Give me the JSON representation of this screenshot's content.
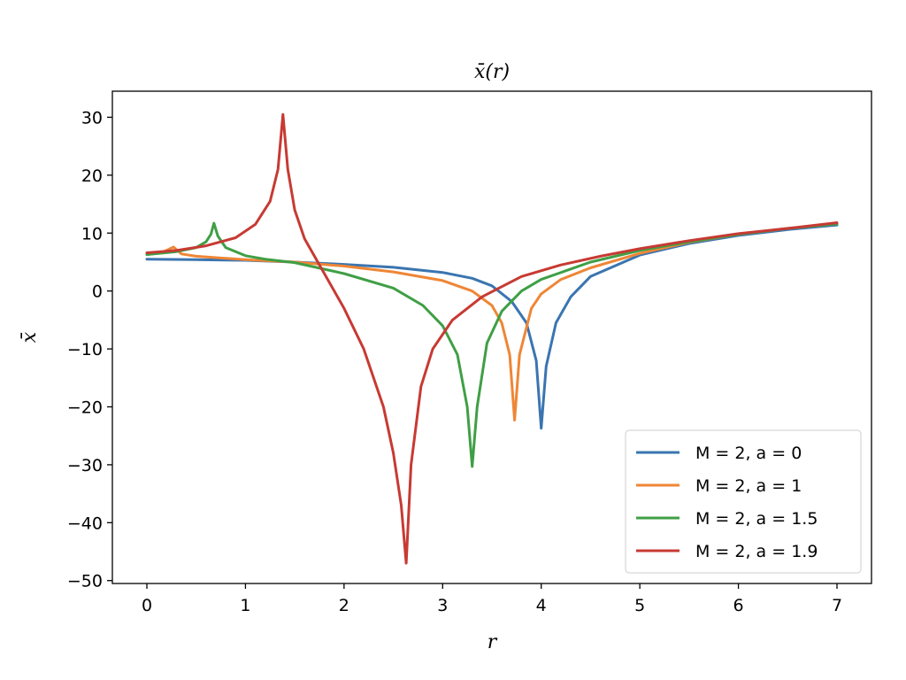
{
  "chart_data": {
    "type": "line",
    "title": "x̄(r)",
    "xlabel": "r",
    "ylabel": "x̄",
    "xlim": [
      -0.35,
      7.35
    ],
    "ylim": [
      -50.5,
      34.5
    ],
    "xticks": [
      0,
      1,
      2,
      3,
      4,
      5,
      6,
      7
    ],
    "xtick_labels": [
      "0",
      "1",
      "2",
      "3",
      "4",
      "5",
      "6",
      "7"
    ],
    "yticks": [
      -50,
      -40,
      -30,
      -20,
      -10,
      0,
      10,
      20,
      30
    ],
    "ytick_labels": [
      "−50",
      "−40",
      "−30",
      "−20",
      "−10",
      "0",
      "10",
      "20",
      "30"
    ],
    "grid": false,
    "legend_position": "bottom-right",
    "series": [
      {
        "name": "M = 2, a = 0",
        "color": "#3a75b0",
        "x": [
          0,
          0.5,
          1.0,
          1.5,
          2.0,
          2.5,
          3.0,
          3.3,
          3.5,
          3.7,
          3.85,
          3.95,
          4.0,
          4.05,
          4.15,
          4.3,
          4.5,
          5.0,
          5.5,
          6.0,
          6.5,
          7.0
        ],
        "y": [
          5.5,
          5.4,
          5.3,
          5.0,
          4.6,
          4.1,
          3.2,
          2.2,
          0.9,
          -1.8,
          -5.5,
          -12,
          -23.7,
          -13,
          -5.5,
          -1.0,
          2.5,
          6.2,
          8.2,
          9.6,
          10.6,
          11.4
        ]
      },
      {
        "name": "M = 2, a = 1",
        "color": "#ef8636",
        "x": [
          0,
          0.15,
          0.27,
          0.35,
          0.5,
          1.0,
          1.5,
          2.0,
          2.5,
          3.0,
          3.3,
          3.5,
          3.6,
          3.68,
          3.73,
          3.78,
          3.9,
          4.0,
          4.2,
          4.5,
          5.0,
          5.5,
          6.0,
          6.5,
          7.0
        ],
        "y": [
          6.3,
          6.6,
          7.6,
          6.4,
          6.0,
          5.4,
          5.0,
          4.3,
          3.3,
          1.8,
          0,
          -2.5,
          -5.5,
          -11,
          -22.3,
          -11,
          -3.0,
          -0.5,
          2.0,
          4.0,
          6.5,
          8.4,
          9.8,
          10.8,
          11.6
        ]
      },
      {
        "name": "M = 2, a = 1.5",
        "color": "#3f9f45",
        "x": [
          0,
          0.3,
          0.5,
          0.6,
          0.65,
          0.68,
          0.72,
          0.8,
          1.0,
          1.2,
          1.5,
          2.0,
          2.5,
          2.8,
          3.0,
          3.15,
          3.25,
          3.3,
          3.35,
          3.45,
          3.6,
          3.8,
          4.0,
          4.5,
          5.0,
          5.5,
          6.0,
          6.5,
          7.0
        ],
        "y": [
          6.3,
          6.8,
          7.5,
          8.5,
          9.8,
          11.7,
          9.5,
          7.5,
          6.1,
          5.5,
          4.9,
          3.0,
          0.5,
          -2.5,
          -6.0,
          -11,
          -20,
          -30.3,
          -20,
          -9.0,
          -3.5,
          0,
          2.0,
          5.0,
          7.0,
          8.5,
          9.8,
          10.8,
          11.6
        ]
      },
      {
        "name": "M = 2, a = 1.9",
        "color": "#c73a33",
        "x": [
          0,
          0.3,
          0.6,
          0.9,
          1.1,
          1.25,
          1.33,
          1.38,
          1.43,
          1.5,
          1.6,
          1.8,
          2.0,
          2.2,
          2.4,
          2.5,
          2.58,
          2.63,
          2.68,
          2.78,
          2.9,
          3.1,
          3.4,
          3.8,
          4.2,
          4.6,
          5.0,
          5.5,
          6.0,
          6.5,
          7.0
        ],
        "y": [
          6.6,
          7.0,
          7.8,
          9.2,
          11.5,
          15.5,
          21.0,
          30.5,
          21.0,
          14.0,
          9.0,
          3.0,
          -3.0,
          -10.0,
          -20.0,
          -28.0,
          -37.0,
          -47.0,
          -30.0,
          -16.5,
          -10.0,
          -5.0,
          -1.0,
          2.5,
          4.5,
          6.0,
          7.3,
          8.7,
          9.9,
          10.8,
          11.8
        ]
      }
    ]
  }
}
